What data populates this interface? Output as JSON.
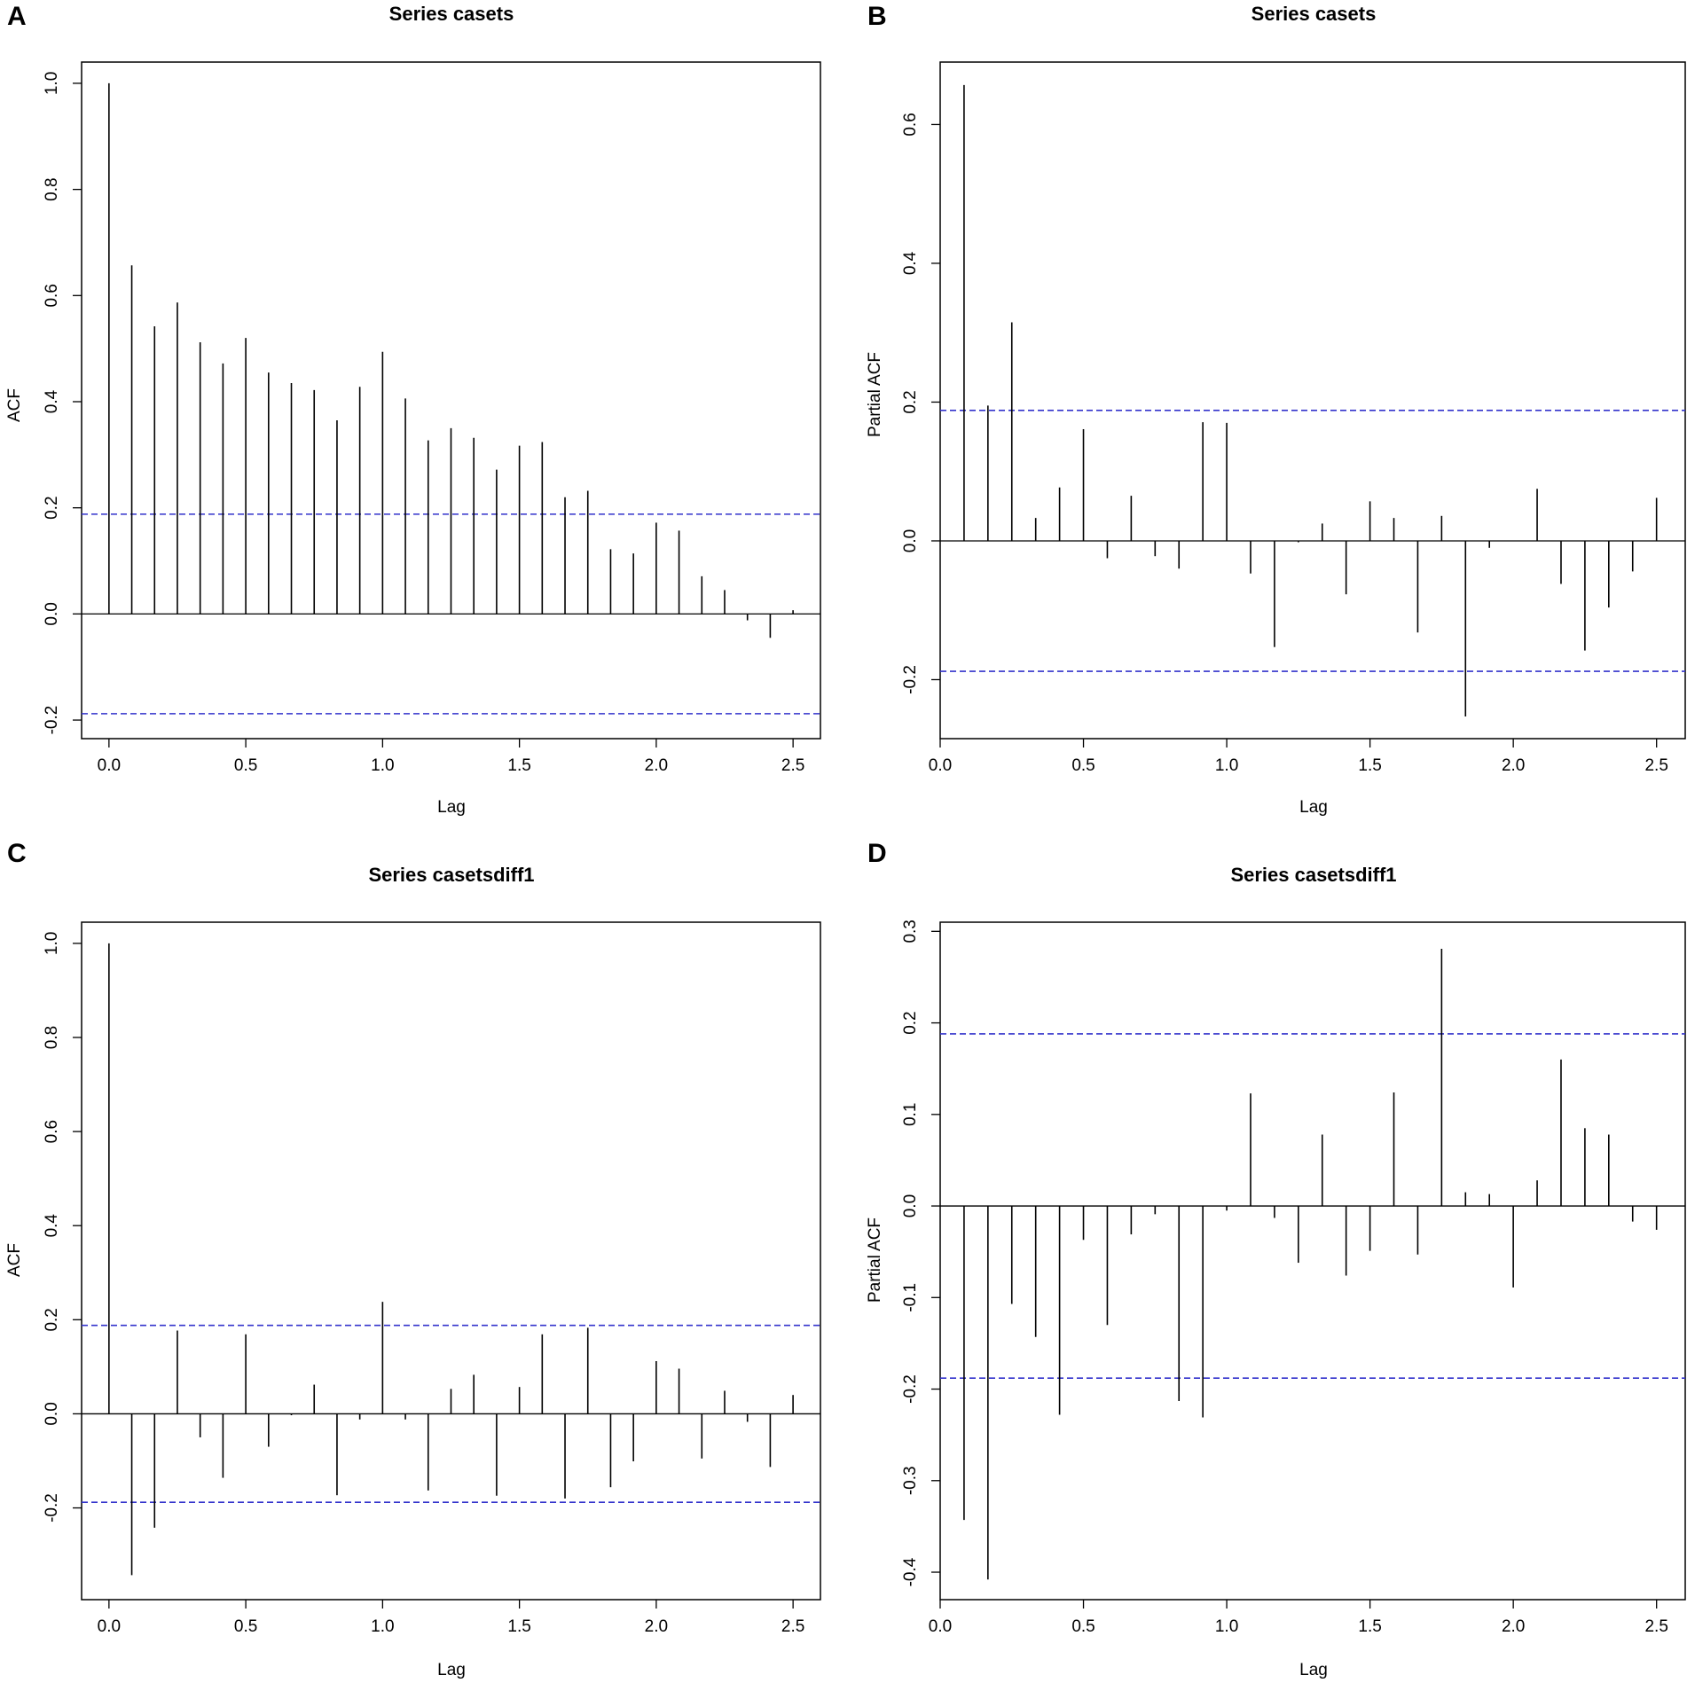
{
  "figure": {
    "background": "#ffffff",
    "spike_color": "#000000",
    "ci_color": "#3333cc"
  },
  "chart_data": [
    {
      "panel": "A",
      "type": "bar",
      "title": "Series  casets",
      "xlabel": "Lag",
      "ylabel": "ACF",
      "xlim": [
        -0.1,
        2.6
      ],
      "ylim": [
        -0.235,
        1.04
      ],
      "xticks": [
        0.0,
        0.5,
        1.0,
        1.5,
        2.0,
        2.5
      ],
      "xtick_labels": [
        "0.0",
        "0.5",
        "1.0",
        "1.5",
        "2.0",
        "2.5"
      ],
      "yticks": [
        -0.2,
        0.0,
        0.2,
        0.4,
        0.6,
        0.8,
        1.0
      ],
      "ytick_labels": [
        "-0.2",
        "0.0",
        "0.2",
        "0.4",
        "0.6",
        "0.8",
        "1.0"
      ],
      "ci": 0.188,
      "zero_line": true,
      "lag_step": 0.08333,
      "lag_start": 0,
      "values": [
        1.0,
        0.657,
        0.542,
        0.587,
        0.512,
        0.472,
        0.52,
        0.455,
        0.435,
        0.422,
        0.365,
        0.428,
        0.494,
        0.406,
        0.327,
        0.35,
        0.332,
        0.272,
        0.317,
        0.324,
        0.22,
        0.232,
        0.122,
        0.114,
        0.172,
        0.157,
        0.071,
        0.045,
        -0.012,
        -0.045,
        0.007
      ]
    },
    {
      "panel": "B",
      "type": "bar",
      "title": "Series  casets",
      "xlabel": "Lag",
      "ylabel": "Partial ACF",
      "xlim": [
        0.0,
        2.6
      ],
      "ylim": [
        -0.285,
        0.69
      ],
      "xticks": [
        0.0,
        0.5,
        1.0,
        1.5,
        2.0,
        2.5
      ],
      "xtick_labels": [
        "0.0",
        "0.5",
        "1.0",
        "1.5",
        "2.0",
        "2.5"
      ],
      "yticks": [
        -0.2,
        0.0,
        0.2,
        0.4,
        0.6
      ],
      "ytick_labels": [
        "-0.2",
        "0.0",
        "0.2",
        "0.4",
        "0.6"
      ],
      "ci": 0.188,
      "zero_line": true,
      "lag_step": 0.08333,
      "lag_start": 1,
      "values": [
        0.657,
        0.195,
        0.315,
        0.033,
        0.077,
        0.161,
        -0.025,
        0.065,
        -0.022,
        -0.04,
        0.171,
        0.17,
        -0.047,
        -0.153,
        -0.002,
        0.025,
        -0.077,
        0.057,
        0.033,
        -0.132,
        0.036,
        -0.253,
        -0.01,
        0.0,
        0.075,
        -0.062,
        -0.158,
        -0.096,
        -0.044,
        0.062
      ]
    },
    {
      "panel": "C",
      "type": "bar",
      "title": "Series  casetsdiff1",
      "xlabel": "Lag",
      "ylabel": "ACF",
      "xlim": [
        -0.1,
        2.6
      ],
      "ylim": [
        -0.395,
        1.045
      ],
      "xticks": [
        0.0,
        0.5,
        1.0,
        1.5,
        2.0,
        2.5
      ],
      "xtick_labels": [
        "0.0",
        "0.5",
        "1.0",
        "1.5",
        "2.0",
        "2.5"
      ],
      "yticks": [
        -0.2,
        0.0,
        0.2,
        0.4,
        0.6,
        0.8,
        1.0
      ],
      "ytick_labels": [
        "-0.2",
        "0.0",
        "0.2",
        "0.4",
        "0.6",
        "0.8",
        "1.0"
      ],
      "ci": 0.188,
      "zero_line": true,
      "lag_step": 0.08333,
      "lag_start": 0,
      "values": [
        1.0,
        -0.343,
        -0.242,
        0.177,
        -0.05,
        -0.136,
        0.169,
        -0.07,
        -0.003,
        0.062,
        -0.173,
        -0.012,
        0.238,
        -0.012,
        -0.163,
        0.053,
        0.083,
        -0.174,
        0.057,
        0.169,
        -0.18,
        0.183,
        -0.156,
        -0.101,
        0.112,
        0.096,
        -0.095,
        0.049,
        -0.017,
        -0.113,
        0.04
      ]
    },
    {
      "panel": "D",
      "type": "bar",
      "title": "Series  casetsdiff1",
      "xlabel": "Lag",
      "ylabel": "Partial ACF",
      "xlim": [
        0.0,
        2.6
      ],
      "ylim": [
        -0.43,
        0.31
      ],
      "xticks": [
        0.0,
        0.5,
        1.0,
        1.5,
        2.0,
        2.5
      ],
      "xtick_labels": [
        "0.0",
        "0.5",
        "1.0",
        "1.5",
        "2.0",
        "2.5"
      ],
      "yticks": [
        -0.4,
        -0.3,
        -0.2,
        -0.1,
        0.0,
        0.1,
        0.2,
        0.3
      ],
      "ytick_labels": [
        "-0.4",
        "-0.3",
        "-0.2",
        "-0.1",
        "0.0",
        "0.1",
        "0.2",
        "0.3"
      ],
      "ci": 0.188,
      "zero_line": true,
      "lag_step": 0.08333,
      "lag_start": 1,
      "values": [
        -0.343,
        -0.408,
        -0.107,
        -0.143,
        -0.228,
        -0.037,
        -0.13,
        -0.031,
        -0.009,
        -0.213,
        -0.231,
        -0.005,
        0.123,
        -0.013,
        -0.062,
        0.078,
        -0.076,
        -0.049,
        0.124,
        -0.053,
        0.281,
        0.015,
        0.013,
        -0.089,
        0.028,
        0.16,
        0.085,
        0.078,
        -0.017,
        -0.026
      ]
    }
  ]
}
